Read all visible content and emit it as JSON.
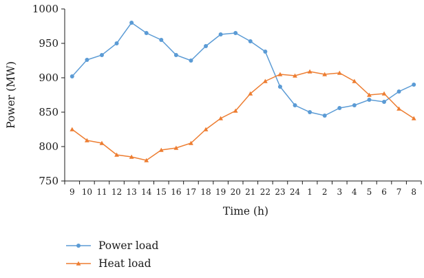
{
  "chart_data": {
    "type": "line",
    "title": "",
    "xlabel": "Time (h)",
    "ylabel": "Power (MW)",
    "ylim": [
      750,
      1000
    ],
    "yticks": [
      "750",
      "800",
      "850",
      "900",
      "950",
      "1000"
    ],
    "grid": false,
    "legend_position": "bottom-left",
    "categories": [
      "9",
      "10",
      "11",
      "12",
      "13",
      "14",
      "15",
      "16",
      "17",
      "18",
      "19",
      "20",
      "21",
      "22",
      "23",
      "24",
      "1",
      "2",
      "3",
      "4",
      "5",
      "6",
      "7",
      "8"
    ],
    "series": [
      {
        "name": "Power load",
        "color": "#5b9bd5",
        "marker": "circle",
        "values": [
          902,
          926,
          933,
          950,
          980,
          965,
          955,
          933,
          925,
          946,
          963,
          965,
          953,
          938,
          887,
          860,
          850,
          845,
          856,
          860,
          868,
          865,
          880,
          890
        ]
      },
      {
        "name": "Heat load",
        "color": "#ed7d31",
        "marker": "triangle",
        "values": [
          825,
          809,
          805,
          788,
          785,
          780,
          795,
          798,
          805,
          825,
          841,
          852,
          877,
          895,
          905,
          903,
          909,
          905,
          907,
          895,
          875,
          877,
          855,
          841
        ]
      }
    ]
  }
}
